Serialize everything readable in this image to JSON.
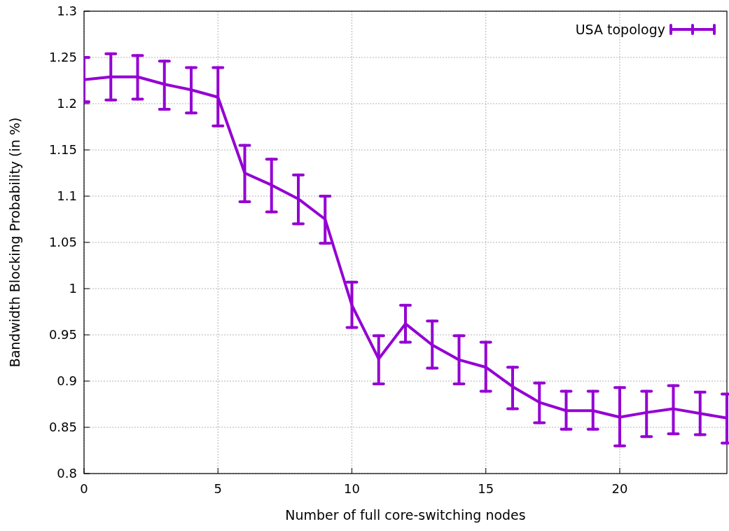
{
  "chart_data": {
    "type": "line",
    "xlabel": "Number of full core-switching nodes",
    "ylabel": "Bandwidth Blocking Probability (in %)",
    "x": [
      0,
      1,
      2,
      3,
      4,
      5,
      6,
      7,
      8,
      9,
      10,
      11,
      12,
      13,
      14,
      15,
      16,
      17,
      18,
      19,
      20,
      21,
      22,
      23,
      24
    ],
    "series": [
      {
        "name": "USA topology",
        "color": "#9400d3",
        "values": [
          1.226,
          1.229,
          1.229,
          1.221,
          1.215,
          1.207,
          1.125,
          1.112,
          1.097,
          1.075,
          0.982,
          0.924,
          0.962,
          0.939,
          0.923,
          0.915,
          0.894,
          0.877,
          0.868,
          0.868,
          0.861,
          0.866,
          0.87,
          0.865,
          0.86
        ],
        "errors": [
          [
            1.202,
            1.25
          ],
          [
            1.204,
            1.254
          ],
          [
            1.205,
            1.252
          ],
          [
            1.194,
            1.246
          ],
          [
            1.19,
            1.239
          ],
          [
            1.176,
            1.239
          ],
          [
            1.094,
            1.155
          ],
          [
            1.083,
            1.14
          ],
          [
            1.07,
            1.123
          ],
          [
            1.049,
            1.1
          ],
          [
            0.958,
            1.007
          ],
          [
            0.897,
            0.949
          ],
          [
            0.942,
            0.982
          ],
          [
            0.914,
            0.965
          ],
          [
            0.897,
            0.949
          ],
          [
            0.889,
            0.942
          ],
          [
            0.87,
            0.915
          ],
          [
            0.855,
            0.898
          ],
          [
            0.848,
            0.889
          ],
          [
            0.848,
            0.889
          ],
          [
            0.83,
            0.893
          ],
          [
            0.84,
            0.889
          ],
          [
            0.843,
            0.895
          ],
          [
            0.842,
            0.888
          ],
          [
            0.833,
            0.886
          ]
        ]
      }
    ],
    "xlim": [
      0,
      24
    ],
    "ylim": [
      0.8,
      1.3
    ],
    "xticks": [
      0,
      5,
      10,
      15,
      20
    ],
    "yticks": [
      0.8,
      0.85,
      0.9,
      0.95,
      1,
      1.05,
      1.1,
      1.15,
      1.2,
      1.25,
      1.3
    ],
    "grid": true,
    "legend": "top right",
    "marker": "none",
    "line_style": "solid"
  }
}
